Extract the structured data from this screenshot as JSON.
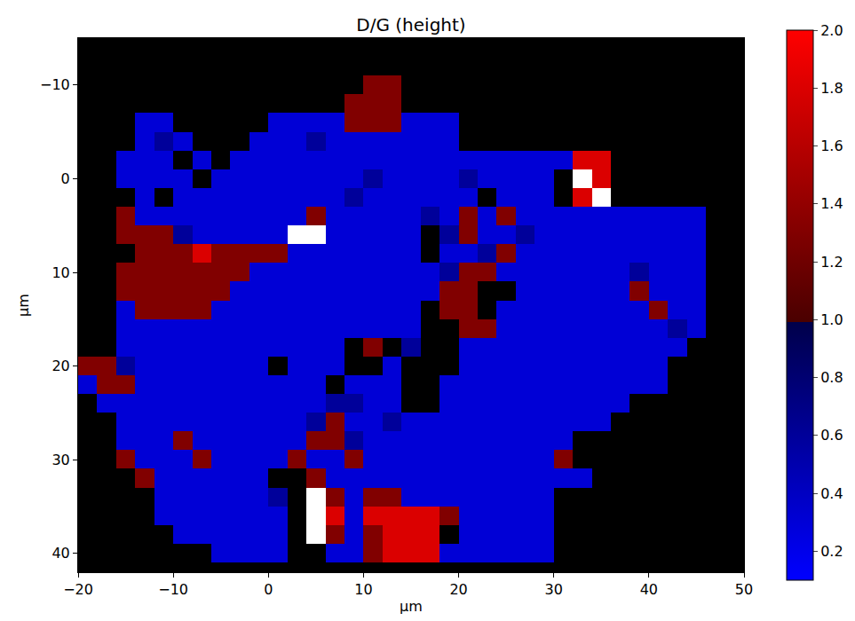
{
  "chart_data": {
    "type": "heatmap",
    "title": "D/G (height)",
    "x_label": "µm",
    "y_label": "µm",
    "xlim": [
      -20,
      50
    ],
    "xticks": [
      {
        "value": -20,
        "label": "−20"
      },
      {
        "value": -10,
        "label": "−10"
      },
      0,
      10,
      20,
      30,
      40,
      50
    ],
    "ylim": [
      42,
      -15
    ],
    "yticks": [
      {
        "value": -10,
        "label": "−10"
      },
      0,
      10,
      20,
      30,
      40
    ],
    "zlim": [
      0.1,
      2.0
    ],
    "zticks": [
      0.2,
      0.4,
      0.6,
      0.8,
      {
        "value": 1.0,
        "label": "1.0"
      },
      1.2,
      1.4,
      1.6,
      1.8,
      {
        "value": 2.0,
        "label": "2.0"
      }
    ],
    "x": [
      -19,
      -17,
      -15,
      -13,
      -11,
      -9,
      -7,
      -5,
      -3,
      -1,
      1,
      3,
      5,
      7,
      9,
      11,
      13,
      15,
      17,
      19,
      21,
      23,
      25,
      27,
      29,
      31,
      33,
      35,
      37,
      39,
      41,
      43,
      45,
      47,
      49
    ],
    "y": [
      -14,
      -12,
      -10,
      -8,
      -6,
      -4,
      -2,
      0,
      2,
      4,
      6,
      8,
      10,
      12,
      14,
      16,
      18,
      20,
      22,
      24,
      26,
      28,
      30,
      32,
      34,
      36,
      38,
      40
    ],
    "cells": [
      [
        null,
        null,
        null,
        null,
        null,
        null,
        null,
        null,
        null,
        null,
        null,
        null,
        null,
        null,
        null,
        null,
        null,
        null,
        null,
        null,
        null,
        null,
        null,
        null,
        null,
        null,
        null,
        null,
        null,
        null,
        null,
        null,
        null,
        null,
        null
      ],
      [
        null,
        null,
        null,
        null,
        null,
        null,
        null,
        null,
        null,
        null,
        null,
        null,
        null,
        null,
        null,
        null,
        null,
        null,
        null,
        null,
        null,
        null,
        null,
        null,
        null,
        null,
        null,
        null,
        null,
        null,
        null,
        null,
        null,
        null,
        null
      ],
      [
        null,
        null,
        null,
        null,
        null,
        null,
        null,
        null,
        null,
        null,
        null,
        null,
        null,
        null,
        null,
        1.3,
        1.3,
        null,
        null,
        null,
        null,
        null,
        null,
        null,
        null,
        null,
        null,
        null,
        null,
        null,
        null,
        null,
        null,
        null,
        null
      ],
      [
        null,
        null,
        null,
        null,
        null,
        null,
        null,
        null,
        null,
        null,
        null,
        null,
        null,
        null,
        1.3,
        1.3,
        1.3,
        null,
        null,
        null,
        null,
        null,
        null,
        null,
        null,
        null,
        null,
        null,
        null,
        null,
        null,
        null,
        null,
        null,
        null
      ],
      [
        null,
        null,
        null,
        0.3,
        0.3,
        null,
        null,
        null,
        null,
        null,
        0.3,
        0.3,
        0.3,
        0.3,
        1.3,
        1.3,
        1.3,
        0.3,
        0.3,
        0.3,
        null,
        null,
        null,
        null,
        null,
        null,
        null,
        null,
        null,
        null,
        null,
        null,
        null,
        null,
        null
      ],
      [
        null,
        null,
        null,
        0.3,
        0.6,
        0.3,
        null,
        null,
        null,
        0.3,
        0.3,
        0.3,
        0.6,
        0.3,
        0.3,
        0.3,
        0.3,
        0.3,
        0.3,
        0.3,
        null,
        null,
        null,
        null,
        null,
        null,
        null,
        null,
        null,
        null,
        null,
        null,
        null,
        null,
        null
      ],
      [
        null,
        null,
        0.3,
        0.3,
        0.3,
        null,
        0.3,
        null,
        0.3,
        0.3,
        0.3,
        0.3,
        0.3,
        0.3,
        0.3,
        0.3,
        0.3,
        0.3,
        0.3,
        0.3,
        0.3,
        0.3,
        0.3,
        0.3,
        0.3,
        0.3,
        1.8,
        1.8,
        null,
        null,
        null,
        null,
        null,
        null,
        null
      ],
      [
        null,
        null,
        0.3,
        0.3,
        0.3,
        0.3,
        null,
        0.3,
        0.3,
        0.3,
        0.3,
        0.3,
        0.3,
        0.3,
        0.3,
        0.6,
        0.3,
        0.3,
        0.3,
        0.3,
        0.6,
        0.3,
        0.3,
        0.3,
        0.3,
        null,
        2.4,
        1.8,
        null,
        null,
        null,
        null,
        null,
        null,
        null
      ],
      [
        null,
        null,
        null,
        0.3,
        null,
        0.3,
        0.3,
        0.3,
        0.3,
        0.3,
        0.3,
        0.3,
        0.3,
        0.3,
        0.6,
        0.3,
        0.3,
        0.3,
        0.3,
        0.3,
        0.3,
        null,
        0.3,
        0.3,
        0.3,
        null,
        1.8,
        2.4,
        null,
        null,
        null,
        null,
        null,
        null,
        null
      ],
      [
        null,
        null,
        1.3,
        0.3,
        0.3,
        0.3,
        0.3,
        0.3,
        0.3,
        0.3,
        0.3,
        0.3,
        1.3,
        0.3,
        0.3,
        0.3,
        0.3,
        0.3,
        0.6,
        0.3,
        1.3,
        0.3,
        1.3,
        0.3,
        0.3,
        0.3,
        0.3,
        0.3,
        0.3,
        0.3,
        0.3,
        0.3,
        0.3,
        null,
        null
      ],
      [
        null,
        null,
        1.3,
        1.3,
        1.3,
        0.6,
        0.3,
        0.3,
        0.3,
        0.3,
        0.3,
        2.4,
        2.4,
        0.3,
        0.3,
        0.3,
        0.3,
        0.3,
        null,
        0.6,
        1.3,
        0.3,
        0.3,
        0.6,
        0.3,
        0.3,
        0.3,
        0.3,
        0.3,
        0.3,
        0.3,
        0.3,
        0.3,
        null,
        null
      ],
      [
        null,
        null,
        null,
        1.3,
        1.3,
        1.3,
        1.8,
        1.3,
        1.3,
        1.3,
        1.3,
        0.3,
        0.3,
        0.3,
        0.3,
        0.3,
        0.3,
        0.3,
        null,
        0.3,
        0.3,
        0.6,
        1.3,
        0.3,
        0.3,
        0.3,
        0.3,
        0.3,
        0.3,
        0.3,
        0.3,
        0.3,
        0.3,
        null,
        null
      ],
      [
        null,
        null,
        1.3,
        1.3,
        1.3,
        1.3,
        1.3,
        1.3,
        1.3,
        0.3,
        0.3,
        0.3,
        0.3,
        0.3,
        0.3,
        0.3,
        0.3,
        0.3,
        0.3,
        0.6,
        1.3,
        1.3,
        0.3,
        0.3,
        0.3,
        0.3,
        0.3,
        0.3,
        0.3,
        0.6,
        0.3,
        0.3,
        0.3,
        null,
        null
      ],
      [
        null,
        null,
        1.3,
        1.3,
        1.3,
        1.3,
        1.3,
        1.3,
        0.3,
        0.3,
        0.3,
        0.3,
        0.3,
        0.3,
        0.3,
        0.3,
        0.3,
        0.3,
        0.3,
        1.3,
        1.3,
        null,
        null,
        0.3,
        0.3,
        0.3,
        0.3,
        0.3,
        0.3,
        1.3,
        0.3,
        0.3,
        0.3,
        null,
        null
      ],
      [
        null,
        null,
        0.3,
        1.3,
        1.3,
        1.3,
        1.3,
        0.3,
        0.3,
        0.3,
        0.3,
        0.3,
        0.3,
        0.3,
        0.3,
        0.3,
        0.3,
        0.3,
        null,
        1.3,
        1.3,
        null,
        0.3,
        0.3,
        0.3,
        0.3,
        0.3,
        0.3,
        0.3,
        0.3,
        1.3,
        0.3,
        0.3,
        null,
        null
      ],
      [
        null,
        null,
        0.3,
        0.3,
        0.3,
        0.3,
        0.3,
        0.3,
        0.3,
        0.3,
        0.3,
        0.3,
        0.3,
        0.3,
        0.3,
        0.3,
        0.3,
        0.3,
        null,
        null,
        1.3,
        1.3,
        0.3,
        0.3,
        0.3,
        0.3,
        0.3,
        0.3,
        0.3,
        0.3,
        0.3,
        0.6,
        0.3,
        null,
        null
      ],
      [
        null,
        null,
        0.3,
        0.3,
        0.3,
        0.3,
        0.3,
        0.3,
        0.3,
        0.3,
        0.3,
        0.3,
        0.3,
        0.3,
        null,
        1.3,
        null,
        0.6,
        null,
        null,
        0.3,
        0.3,
        0.3,
        0.3,
        0.3,
        0.3,
        0.3,
        0.3,
        0.3,
        0.3,
        0.3,
        0.3,
        null,
        null,
        null
      ],
      [
        1.3,
        1.3,
        0.6,
        0.3,
        0.3,
        0.3,
        0.3,
        0.3,
        0.3,
        0.3,
        null,
        0.3,
        0.3,
        0.3,
        null,
        null,
        0.3,
        null,
        null,
        null,
        0.3,
        0.3,
        0.3,
        0.3,
        0.3,
        0.3,
        0.3,
        0.3,
        0.3,
        0.3,
        0.3,
        null,
        null,
        null,
        null
      ],
      [
        0.3,
        1.3,
        1.3,
        0.3,
        0.3,
        0.3,
        0.3,
        0.3,
        0.3,
        0.3,
        0.3,
        0.3,
        0.3,
        null,
        0.3,
        0.3,
        0.3,
        null,
        null,
        0.3,
        0.3,
        0.3,
        0.3,
        0.3,
        0.3,
        0.3,
        0.3,
        0.3,
        0.3,
        0.3,
        0.3,
        null,
        null,
        null,
        null
      ],
      [
        null,
        0.3,
        0.3,
        0.3,
        0.3,
        0.3,
        0.3,
        0.3,
        0.3,
        0.3,
        0.3,
        0.3,
        0.3,
        0.6,
        0.6,
        0.3,
        0.3,
        null,
        null,
        0.3,
        0.3,
        0.3,
        0.3,
        0.3,
        0.3,
        0.3,
        0.3,
        0.3,
        0.3,
        null,
        null,
        null,
        null,
        null,
        null
      ],
      [
        null,
        null,
        0.3,
        0.3,
        0.3,
        0.3,
        0.3,
        0.3,
        0.3,
        0.3,
        0.3,
        0.3,
        0.6,
        1.3,
        0.3,
        0.3,
        0.6,
        0.3,
        0.3,
        0.3,
        0.3,
        0.3,
        0.3,
        0.3,
        0.3,
        0.3,
        0.3,
        0.3,
        null,
        null,
        null,
        null,
        null,
        null,
        null
      ],
      [
        null,
        null,
        0.3,
        0.3,
        0.3,
        1.3,
        0.3,
        0.3,
        0.3,
        0.3,
        0.3,
        0.3,
        1.3,
        1.3,
        0.6,
        0.3,
        0.3,
        0.3,
        0.3,
        0.3,
        0.3,
        0.3,
        0.3,
        0.3,
        0.3,
        0.3,
        null,
        null,
        null,
        null,
        null,
        null,
        null,
        null,
        null
      ],
      [
        null,
        null,
        1.3,
        0.3,
        0.3,
        0.3,
        1.3,
        0.3,
        0.3,
        0.3,
        0.3,
        1.3,
        0.3,
        0.3,
        1.3,
        0.3,
        0.3,
        0.3,
        0.3,
        0.3,
        0.3,
        0.3,
        0.3,
        0.3,
        0.3,
        1.3,
        null,
        null,
        null,
        null,
        null,
        null,
        null,
        null,
        null
      ],
      [
        null,
        null,
        null,
        1.3,
        0.3,
        0.3,
        0.3,
        0.3,
        0.3,
        0.3,
        null,
        null,
        1.3,
        0.3,
        0.3,
        0.3,
        0.3,
        0.3,
        0.3,
        0.3,
        0.3,
        0.3,
        0.3,
        0.3,
        0.3,
        0.3,
        0.3,
        null,
        null,
        null,
        null,
        null,
        null,
        null,
        null
      ],
      [
        null,
        null,
        null,
        null,
        0.3,
        0.3,
        0.3,
        0.3,
        0.3,
        0.3,
        0.6,
        null,
        2.4,
        1.3,
        0.3,
        1.3,
        1.3,
        0.3,
        0.3,
        0.3,
        0.3,
        0.3,
        0.3,
        0.3,
        0.3,
        null,
        null,
        null,
        null,
        null,
        null,
        null,
        null,
        null,
        null
      ],
      [
        null,
        null,
        null,
        null,
        0.3,
        0.3,
        0.3,
        0.3,
        0.3,
        0.3,
        0.3,
        null,
        2.4,
        1.8,
        0.3,
        1.8,
        1.8,
        1.8,
        1.8,
        1.3,
        0.3,
        0.3,
        0.3,
        0.3,
        0.3,
        null,
        null,
        null,
        null,
        null,
        null,
        null,
        null,
        null,
        null
      ],
      [
        null,
        null,
        null,
        null,
        null,
        0.3,
        0.3,
        0.3,
        0.3,
        0.3,
        0.3,
        null,
        2.4,
        1.3,
        0.3,
        1.3,
        1.8,
        1.8,
        1.8,
        null,
        0.3,
        0.3,
        0.3,
        0.3,
        0.3,
        null,
        null,
        null,
        null,
        null,
        null,
        null,
        null,
        null,
        null
      ],
      [
        null,
        null,
        null,
        null,
        null,
        null,
        null,
        0.3,
        0.3,
        0.3,
        0.3,
        null,
        null,
        0.3,
        0.3,
        1.3,
        1.8,
        1.8,
        1.8,
        0.3,
        0.3,
        0.3,
        0.3,
        0.3,
        0.3,
        null,
        null,
        null,
        null,
        null,
        null,
        null,
        null,
        null,
        null
      ]
    ]
  }
}
